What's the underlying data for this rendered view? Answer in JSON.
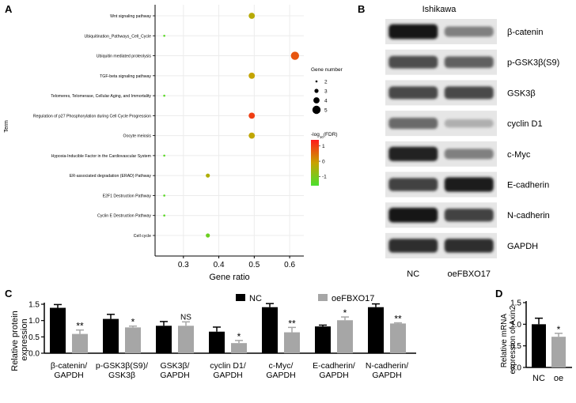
{
  "panel_letters": {
    "a": "A",
    "b": "B",
    "c": "C",
    "d": "D"
  },
  "chart_data": [
    {
      "panel": "A",
      "type": "scatter",
      "title": "",
      "xlabel": "Gene ratio",
      "ylabel": "Term",
      "xlim": [
        0.22,
        0.64
      ],
      "xticks": [
        0.3,
        0.4,
        0.5,
        0.6
      ],
      "xtick_labels": [
        "0.3",
        "0.4",
        "0.5",
        "0.6"
      ],
      "points": [
        {
          "term": "Wnt signaling pathway",
          "x": 0.493,
          "genes": 3,
          "log10fdr": -0.3
        },
        {
          "term": "Ubiquitination_Pathways_Cell_Cycle",
          "x": 0.246,
          "genes": 1,
          "log10fdr": -1.4
        },
        {
          "term": "Ubiquitin mediated proteolysis",
          "x": 0.615,
          "genes": 4,
          "log10fdr": 0.75
        },
        {
          "term": "TGF-beta signaling pathway",
          "x": 0.493,
          "genes": 3,
          "log10fdr": -0.15
        },
        {
          "term": "Telomeres, Telomerase, Cellular Aging, and  Immortality",
          "x": 0.246,
          "genes": 1,
          "log10fdr": -1.4
        },
        {
          "term": "Regulation of p27 Phosphorylation during Cell Cycle Progression",
          "x": 0.493,
          "genes": 3,
          "log10fdr": 1.0
        },
        {
          "term": "Oocyte meiosis",
          "x": 0.493,
          "genes": 3,
          "log10fdr": -0.2
        },
        {
          "term": "Hypoxia-Inducible Factor in the Cardiovascular System",
          "x": 0.246,
          "genes": 1,
          "log10fdr": -1.4
        },
        {
          "term": "ER-associated degradation (ERAD) Pathway",
          "x": 0.369,
          "genes": 2,
          "log10fdr": -0.4
        },
        {
          "term": "E2F1 Destruction Pathway",
          "x": 0.246,
          "genes": 1,
          "log10fdr": -1.4
        },
        {
          "term": "Cyclin E Destruction Pathway",
          "x": 0.246,
          "genes": 1,
          "log10fdr": -1.4
        },
        {
          "term": "Cell cycle",
          "x": 0.369,
          "genes": 2,
          "log10fdr": -1.2
        }
      ],
      "size_legend": {
        "title": "Gene number",
        "values": [
          2,
          3,
          4,
          5
        ],
        "labels": [
          "2",
          "3",
          "4",
          "5"
        ]
      },
      "color_legend": {
        "title_prefix": "-log",
        "title_sub": "10",
        "title_suffix": "(FDR)",
        "ticks": [
          1,
          0,
          -1
        ],
        "tick_labels": [
          "1",
          "0",
          "-1"
        ],
        "range": [
          -1.6,
          1.4
        ],
        "colors": {
          "high": "#ff1a1a",
          "mid": "#c8a200",
          "low": "#4be02e"
        }
      }
    },
    {
      "panel": "B",
      "type": "western-blot",
      "title": "Ishikawa",
      "lane_labels": [
        "NC",
        "oeFBXO17"
      ],
      "proteins": [
        {
          "name": "β-catenin",
          "nc": 0.95,
          "oe": 0.45
        },
        {
          "name": "p-GSK3β(S9)",
          "nc": 0.7,
          "oe": 0.6
        },
        {
          "name": "GSK3β",
          "nc": 0.72,
          "oe": 0.72
        },
        {
          "name": "cyclin D1",
          "nc": 0.55,
          "oe": 0.22
        },
        {
          "name": "c-Myc",
          "nc": 0.9,
          "oe": 0.45
        },
        {
          "name": "E-cadherin",
          "nc": 0.75,
          "oe": 0.92
        },
        {
          "name": "N-cadherin",
          "nc": 0.95,
          "oe": 0.75
        },
        {
          "name": "GAPDH",
          "nc": 0.85,
          "oe": 0.85
        }
      ]
    },
    {
      "panel": "C",
      "type": "bar",
      "ylabel_line1": "Relative protein",
      "ylabel_line2": "expression",
      "ylim": [
        0,
        1.5
      ],
      "yticks": [
        0,
        0.5,
        1.0,
        1.5
      ],
      "ytick_labels": [
        "0.0",
        "0.5",
        "1.0",
        "1.5"
      ],
      "legend": [
        {
          "name": "NC",
          "color": "#000000"
        },
        {
          "name": "oeFBXO17",
          "color": "#a6a6a6"
        }
      ],
      "categories": [
        {
          "line1": "β-catenin/",
          "line2": "GAPDH"
        },
        {
          "line1": "p-GSK3β(S9)/",
          "line2": "GSK3β"
        },
        {
          "line1": "GSK3β/",
          "line2": "GAPDH"
        },
        {
          "line1": "cyclin D1/",
          "line2": "GAPDH"
        },
        {
          "line1": "c-Myc/",
          "line2": "GAPDH"
        },
        {
          "line1": "E-cadherin/",
          "line2": "GAPDH"
        },
        {
          "line1": "N-cadherin/",
          "line2": "GAPDH"
        }
      ],
      "series": [
        {
          "name": "NC",
          "values": [
            1.39,
            1.05,
            0.84,
            0.66,
            1.41,
            0.82,
            1.41
          ],
          "errors": [
            0.1,
            0.14,
            0.13,
            0.14,
            0.11,
            0.04,
            0.1
          ]
        },
        {
          "name": "oeFBXO17",
          "values": [
            0.59,
            0.79,
            0.84,
            0.31,
            0.64,
            1.01,
            0.91
          ],
          "errors": [
            0.12,
            0.04,
            0.12,
            0.08,
            0.15,
            0.1,
            0.02
          ]
        }
      ],
      "significance": [
        "**",
        "*",
        "NS",
        "*",
        "**",
        "*",
        "**"
      ]
    },
    {
      "panel": "D",
      "type": "bar",
      "ylabel_line1": "Relative mRNA",
      "ylabel_line2": "expression of Axin2",
      "ylim": [
        0,
        1.5
      ],
      "yticks": [
        0,
        0.5,
        1.0,
        1.5
      ],
      "ytick_labels": [
        "0.0",
        "0.5",
        "1.0",
        "1.5"
      ],
      "categories": [
        "NC",
        "oe"
      ],
      "values": [
        1.0,
        0.71
      ],
      "errors": [
        0.14,
        0.08
      ],
      "colors": [
        "#000000",
        "#a6a6a6"
      ],
      "significance": [
        "",
        "*"
      ]
    }
  ]
}
